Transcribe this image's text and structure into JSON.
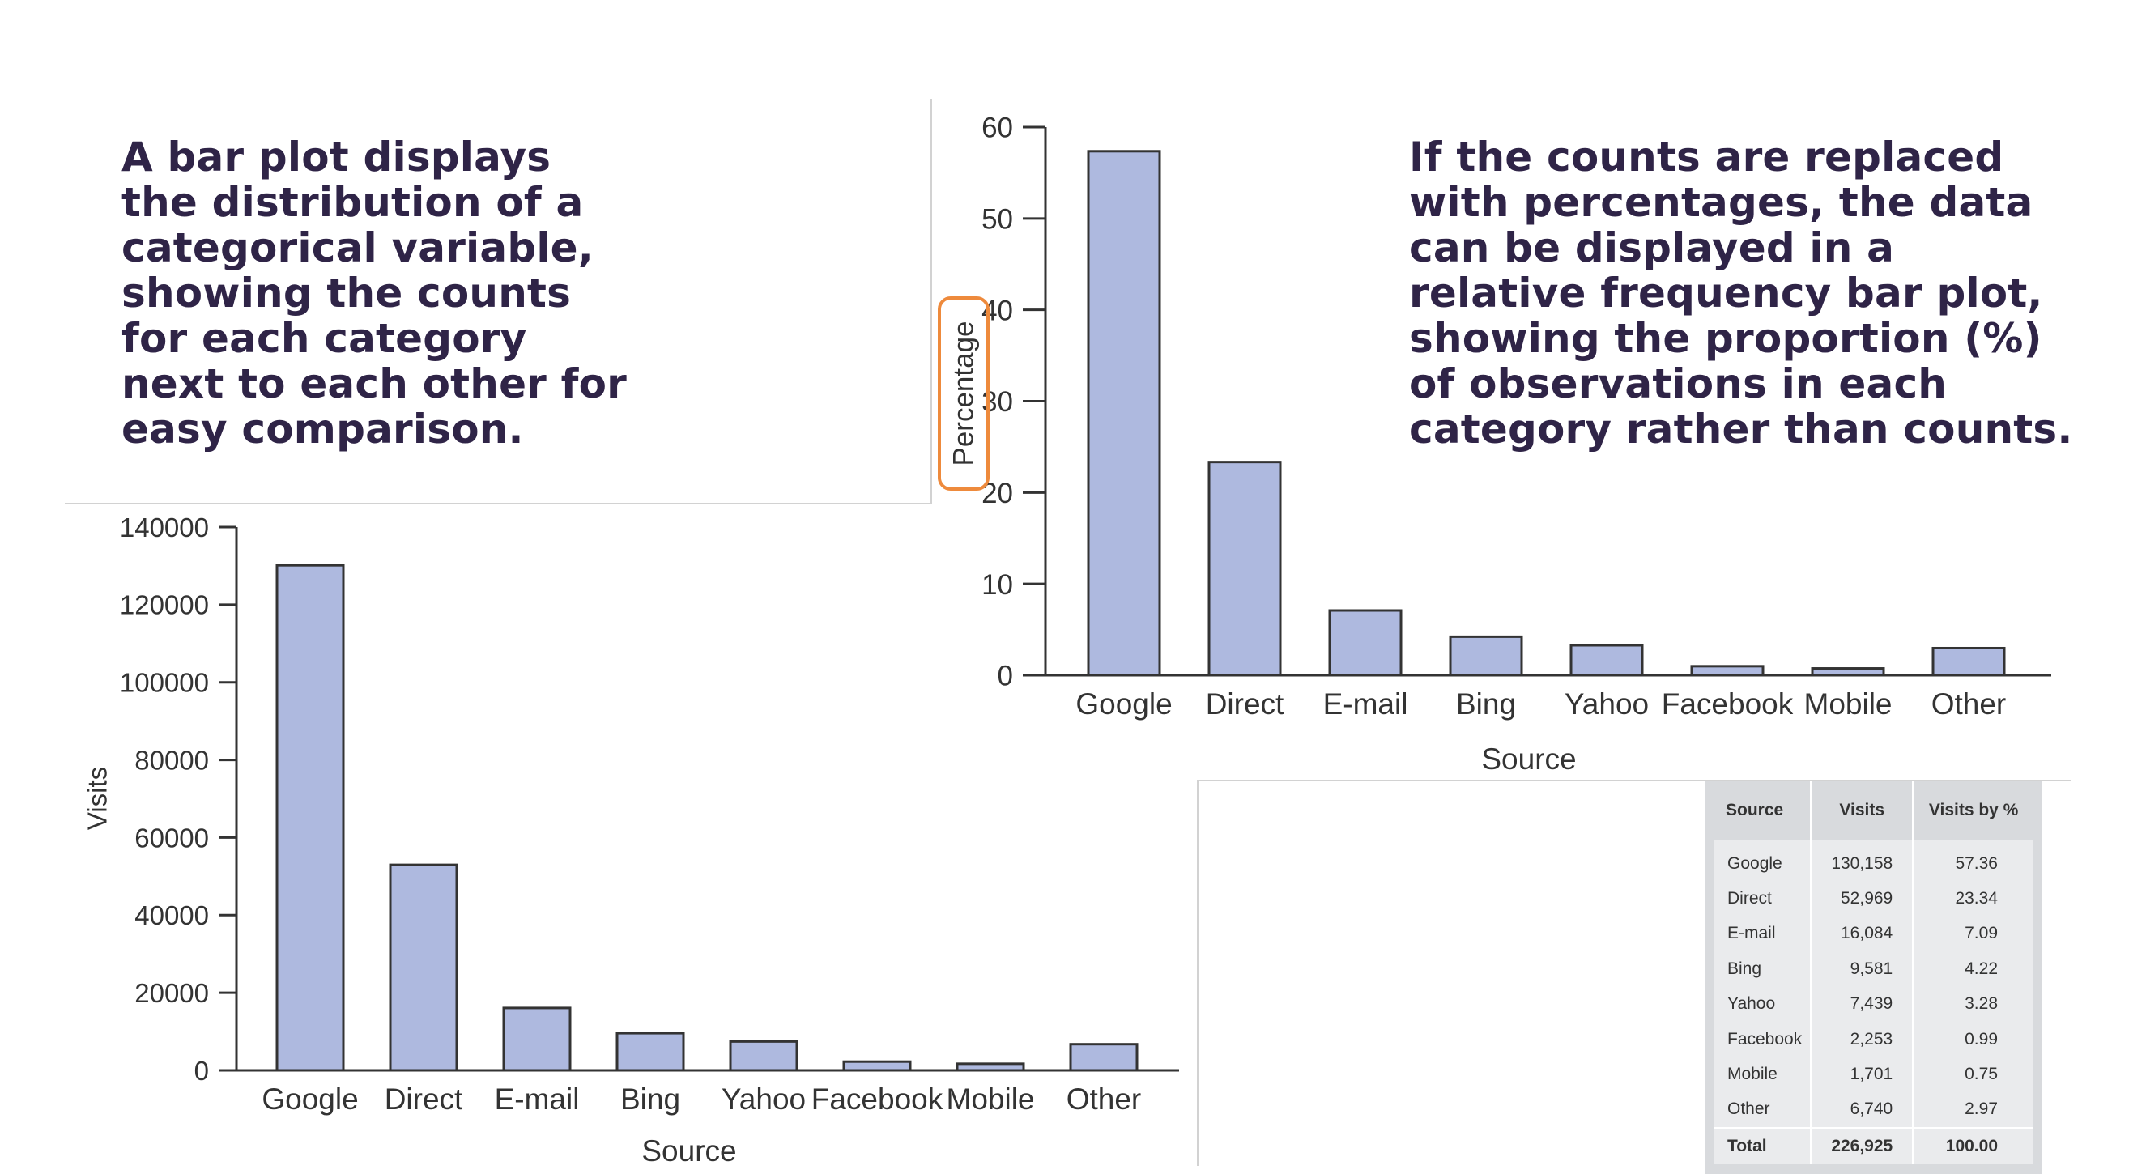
{
  "blurb_left": "A bar plot displays\nthe distribution of a\ncategorical variable,\nshowing the counts\nfor each category\nnext to each other for\neasy comparison.",
  "blurb_right": "If the counts are replaced\nwith percentages, the data\ncan be displayed in a\nrelative frequency bar plot,\nshowing the proportion (%)\nof observations in each\ncategory rather than counts.",
  "colors": {
    "bar_fill": "#aeb9df",
    "bar_stroke": "#333333",
    "text": "#2f2447",
    "highlight": "#ee8a3c"
  },
  "chart_data": [
    {
      "type": "bar",
      "title": "",
      "categories": [
        "Google",
        "Direct",
        "E-mail",
        "Bing",
        "Yahoo",
        "Facebook",
        "Mobile",
        "Other"
      ],
      "values": [
        130158,
        52969,
        16084,
        9581,
        7439,
        2253,
        1701,
        6740
      ],
      "xlabel": "Source",
      "ylabel": "Visits",
      "ylim": [
        0,
        140000
      ],
      "yticks": [
        "0",
        "20000",
        "40000",
        "60000",
        "80000",
        "100000",
        "120000",
        "140000"
      ],
      "grid": false
    },
    {
      "type": "bar",
      "title": "",
      "categories": [
        "Google",
        "Direct",
        "E-mail",
        "Bing",
        "Yahoo",
        "Facebook",
        "Mobile",
        "Other"
      ],
      "values": [
        57.36,
        23.34,
        7.09,
        4.22,
        3.28,
        0.99,
        0.75,
        2.97
      ],
      "xlabel": "Source",
      "ylabel": "Percentage",
      "ylim": [
        0,
        60
      ],
      "yticks": [
        "0",
        "10",
        "20",
        "30",
        "40",
        "50",
        "60"
      ],
      "grid": false
    }
  ],
  "table": {
    "headers": [
      "Source",
      "Visits",
      "Visits by %"
    ],
    "rows": [
      [
        "Google",
        "130,158",
        "57.36"
      ],
      [
        "Direct",
        "52,969",
        "23.34"
      ],
      [
        "E-mail",
        "16,084",
        "7.09"
      ],
      [
        "Bing",
        "9,581",
        "4.22"
      ],
      [
        "Yahoo",
        "7,439",
        "3.28"
      ],
      [
        "Facebook",
        "2,253",
        "0.99"
      ],
      [
        "Mobile",
        "1,701",
        "0.75"
      ],
      [
        "Other",
        "6,740",
        "2.97"
      ]
    ],
    "total": [
      "Total",
      "226,925",
      "100.00"
    ]
  }
}
